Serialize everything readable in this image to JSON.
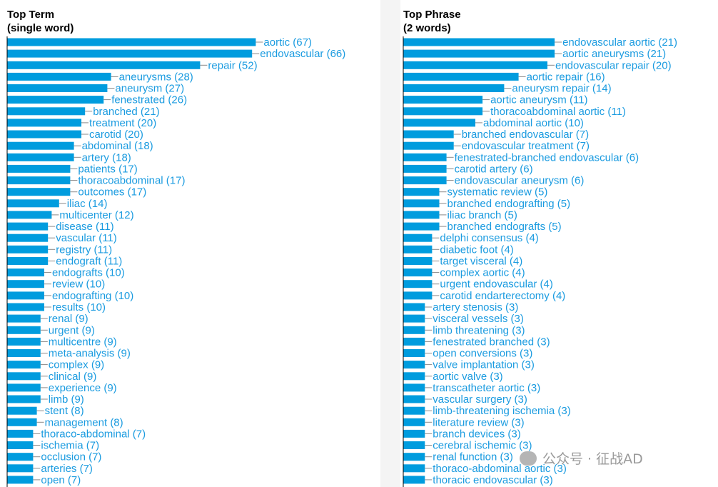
{
  "chart_data": [
    {
      "type": "bar",
      "orientation": "horizontal",
      "title": "Top Term",
      "subtitle": "(single word)",
      "bar_color": "#009cde",
      "label_color": "#1a9be0",
      "categories": [
        "aortic",
        "endovascular",
        "repair",
        "aneurysms",
        "aneurysm",
        "fenestrated",
        "branched",
        "treatment",
        "carotid",
        "abdominal",
        "artery",
        "patients",
        "thoracoabdominal",
        "outcomes",
        "iliac",
        "multicenter",
        "disease",
        "vascular",
        "registry",
        "endograft",
        "endografts",
        "review",
        "endografting",
        "results",
        "renal",
        "urgent",
        "multicentre",
        "meta-analysis",
        "complex",
        "clinical",
        "experience",
        "limb",
        "stent",
        "management",
        "thoraco-abdominal",
        "ischemia",
        "occlusion",
        "arteries",
        "open"
      ],
      "values": [
        67,
        66,
        52,
        28,
        27,
        26,
        21,
        20,
        20,
        18,
        18,
        17,
        17,
        17,
        14,
        12,
        11,
        11,
        11,
        11,
        10,
        10,
        10,
        10,
        9,
        9,
        9,
        9,
        9,
        9,
        9,
        9,
        8,
        8,
        7,
        7,
        7,
        7,
        7
      ]
    },
    {
      "type": "bar",
      "orientation": "horizontal",
      "title": "Top Phrase",
      "subtitle": "(2 words)",
      "bar_color": "#009cde",
      "label_color": "#1a9be0",
      "categories": [
        "endovascular aortic",
        "aortic aneurysms",
        "endovascular repair",
        "aortic repair",
        "aneurysm repair",
        "aortic aneurysm",
        "thoracoabdominal aortic",
        "abdominal aortic",
        "branched endovascular",
        "endovascular treatment",
        "fenestrated-branched endovascular",
        "carotid artery",
        "endovascular aneurysm",
        "systematic review",
        "branched endografting",
        "iliac branch",
        "branched endografts",
        "delphi consensus",
        "diabetic foot",
        "target visceral",
        "complex aortic",
        "urgent endovascular",
        "carotid endarterectomy",
        "artery stenosis",
        "visceral vessels",
        "limb threatening",
        "fenestrated branched",
        "open conversions",
        "valve implantation",
        "aortic valve",
        "transcatheter aortic",
        "vascular surgery",
        "limb-threatening ischemia",
        "literature review",
        "branch devices",
        "cerebral ischemic",
        "renal function",
        "thoraco-abdominal aortic",
        "thoracic endovascular"
      ],
      "values": [
        21,
        21,
        20,
        16,
        14,
        11,
        11,
        10,
        7,
        7,
        6,
        6,
        6,
        5,
        5,
        5,
        5,
        4,
        4,
        4,
        4,
        4,
        4,
        3,
        3,
        3,
        3,
        3,
        3,
        3,
        3,
        3,
        3,
        3,
        3,
        3,
        3,
        3,
        3
      ]
    }
  ],
  "watermark": "公众号 · 征战AD"
}
